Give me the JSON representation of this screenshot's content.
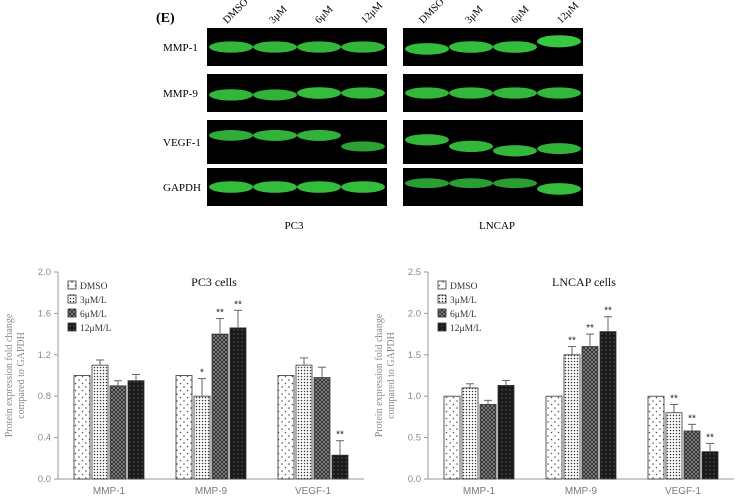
{
  "panel_letter": "(E)",
  "western_blot": {
    "lanes": [
      "DMSO",
      "3μM",
      "6μM",
      "12μM"
    ],
    "proteins": [
      "MMP-1",
      "MMP-9",
      "VEGF-1",
      "GAPDH"
    ],
    "cell_lines": [
      "PC3",
      "LNCAP"
    ],
    "colors": {
      "background": "#000000",
      "band": "#3fe64a"
    }
  },
  "colors": {
    "bar_outline": "#333333",
    "error_bar": "#666666",
    "axis": "#9a9a9a"
  },
  "chart_data": [
    {
      "type": "bar",
      "title": "PC3 cells",
      "ylabel": "Protein expression fold change compared to GAPDH",
      "ylabel_lines": [
        "Protein expression fold change",
        "compared to GAPDH"
      ],
      "categories": [
        "MMP-1",
        "MMP-9",
        "VEGF-1"
      ],
      "ylim": [
        0,
        2.0
      ],
      "yticks": [
        "0.0",
        "0.4",
        "0.8",
        "1.2",
        "1.6",
        "2.0"
      ],
      "ytick_values": [
        0,
        0.4,
        0.8,
        1.2,
        1.6,
        2.0
      ],
      "legend_position": "top-left",
      "series": [
        {
          "name": "DMSO",
          "pattern": "dots-sparse",
          "values": [
            1.0,
            1.0,
            1.0
          ],
          "errors": [
            0,
            0,
            0
          ]
        },
        {
          "name": "3μM/L",
          "pattern": "dots-dense",
          "values": [
            1.1,
            0.8,
            1.1
          ],
          "errors": [
            0.05,
            0.17,
            0.07
          ]
        },
        {
          "name": "6μM/L",
          "pattern": "crosshatch",
          "values": [
            0.9,
            1.4,
            0.98
          ],
          "errors": [
            0.05,
            0.15,
            0.1
          ]
        },
        {
          "name": "12μM/L",
          "pattern": "dark",
          "values": [
            0.95,
            1.46,
            0.23
          ],
          "errors": [
            0.06,
            0.17,
            0.14
          ]
        }
      ],
      "significance": [
        {
          "series": 1,
          "category": 1,
          "label": "*"
        },
        {
          "series": 2,
          "category": 1,
          "label": "**"
        },
        {
          "series": 3,
          "category": 1,
          "label": "**"
        },
        {
          "series": 3,
          "category": 2,
          "label": "**"
        }
      ]
    },
    {
      "type": "bar",
      "title": "LNCAP cells",
      "ylabel": "Protein expression fold change compared to GAPDH",
      "ylabel_lines": [
        "Protein expression fold change",
        "compared to GAPDH"
      ],
      "categories": [
        "MMP-1",
        "MMP-9",
        "VEGF-1"
      ],
      "ylim": [
        0,
        2.5
      ],
      "yticks": [
        "0.0",
        "0.5",
        "1.0",
        "1.5",
        "2.0",
        "2.5"
      ],
      "ytick_values": [
        0,
        0.5,
        1.0,
        1.5,
        2.0,
        2.5
      ],
      "legend_position": "top-left",
      "series": [
        {
          "name": "DMSO",
          "pattern": "dots-sparse",
          "values": [
            1.0,
            1.0,
            1.0
          ],
          "errors": [
            0,
            0,
            0
          ]
        },
        {
          "name": "3μM/L",
          "pattern": "dots-dense",
          "values": [
            1.1,
            1.5,
            0.8
          ],
          "errors": [
            0.05,
            0.1,
            0.1
          ]
        },
        {
          "name": "6μM/L",
          "pattern": "crosshatch",
          "values": [
            0.9,
            1.6,
            0.58
          ],
          "errors": [
            0.05,
            0.15,
            0.08
          ]
        },
        {
          "name": "12μM/L",
          "pattern": "dark",
          "values": [
            1.13,
            1.78,
            0.33
          ],
          "errors": [
            0.06,
            0.18,
            0.1
          ]
        }
      ],
      "significance": [
        {
          "series": 1,
          "category": 1,
          "label": "**"
        },
        {
          "series": 2,
          "category": 1,
          "label": "**"
        },
        {
          "series": 3,
          "category": 1,
          "label": "**"
        },
        {
          "series": 1,
          "category": 2,
          "label": "**"
        },
        {
          "series": 2,
          "category": 2,
          "label": "**"
        },
        {
          "series": 3,
          "category": 2,
          "label": "**"
        }
      ]
    }
  ]
}
